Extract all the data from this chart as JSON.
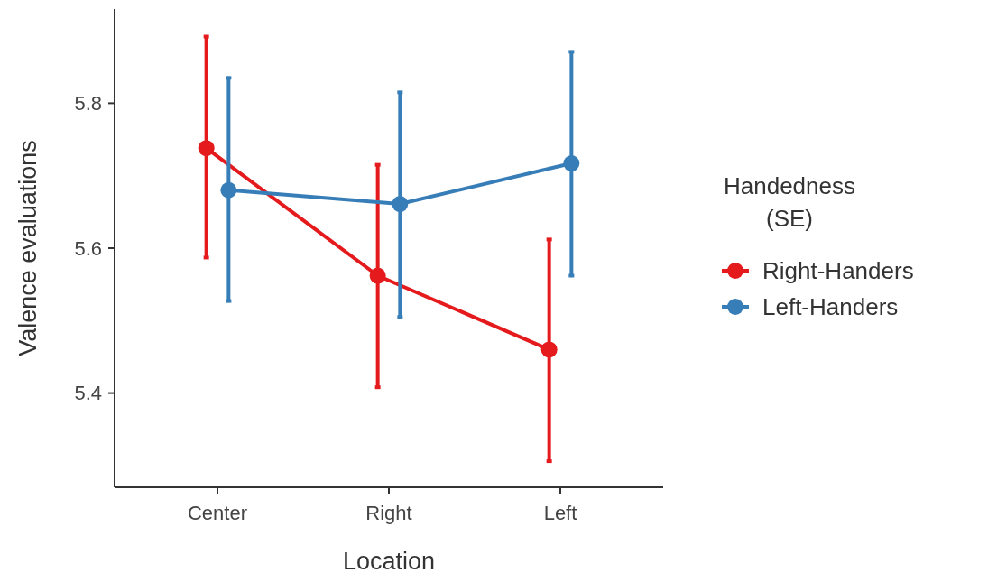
{
  "chart_data": {
    "type": "line",
    "xlabel": "Location",
    "ylabel": "Valence evaluations",
    "legend_title": "Handedness\n(SE)",
    "categories": [
      "Center",
      "Right",
      "Left"
    ],
    "ylim": [
      5.27,
      5.93
    ],
    "yticks": [
      5.4,
      5.6,
      5.8
    ],
    "grid": false,
    "legend": "right",
    "marker": "circle",
    "line_style": "solid",
    "series": [
      {
        "name": "Right-Handers",
        "color": "#e41a1c",
        "values": [
          5.738,
          5.562,
          5.46
        ],
        "errors": [
          [
            5.587,
            5.892
          ],
          [
            5.408,
            5.715
          ],
          [
            5.306,
            5.612
          ]
        ]
      },
      {
        "name": "Left-Handers",
        "color": "#377eb8",
        "values": [
          5.68,
          5.661,
          5.717
        ],
        "errors": [
          [
            5.527,
            5.835
          ],
          [
            5.505,
            5.815
          ],
          [
            5.562,
            5.871
          ]
        ]
      }
    ]
  }
}
